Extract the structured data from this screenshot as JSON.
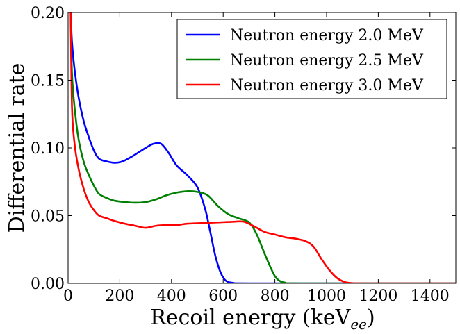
{
  "chart_data": {
    "type": "line",
    "xlabel": "Recoil energy (keV",
    "xlabel_sub": "ee",
    "xlabel_close": ")",
    "ylabel": "Differential rate",
    "xlim": [
      0,
      1500
    ],
    "ylim": [
      0,
      0.2
    ],
    "x_ticks": [
      0,
      200,
      400,
      600,
      800,
      1000,
      1200,
      1400
    ],
    "x_tick_labels": [
      "0",
      "200",
      "400",
      "600",
      "800",
      "1000",
      "1200",
      "1400"
    ],
    "y_ticks": [
      0,
      0.05,
      0.1,
      0.15,
      0.2
    ],
    "y_tick_labels": [
      "0.00",
      "0.05",
      "0.10",
      "0.15",
      "0.20"
    ],
    "grid": false,
    "legend_position": "top-right",
    "series": [
      {
        "name": "Neutron energy 2.0 MeV",
        "color": "#0000ff",
        "points": [
          [
            10,
            0.2
          ],
          [
            15,
            0.178
          ],
          [
            25,
            0.158
          ],
          [
            40,
            0.138
          ],
          [
            60,
            0.12
          ],
          [
            80,
            0.108
          ],
          [
            100,
            0.098
          ],
          [
            120,
            0.092
          ],
          [
            150,
            0.09
          ],
          [
            180,
            0.089
          ],
          [
            210,
            0.09
          ],
          [
            250,
            0.094
          ],
          [
            300,
            0.1
          ],
          [
            330,
            0.103
          ],
          [
            360,
            0.103
          ],
          [
            390,
            0.096
          ],
          [
            420,
            0.087
          ],
          [
            460,
            0.08
          ],
          [
            500,
            0.071
          ],
          [
            530,
            0.055
          ],
          [
            550,
            0.038
          ],
          [
            570,
            0.02
          ],
          [
            590,
            0.008
          ],
          [
            610,
            0.002
          ],
          [
            640,
            0.0003
          ],
          [
            700,
            0
          ],
          [
            1500,
            0
          ]
        ]
      },
      {
        "name": "Neutron energy 2.5 MeV",
        "color": "#008000",
        "points": [
          [
            10,
            0.2
          ],
          [
            15,
            0.155
          ],
          [
            25,
            0.13
          ],
          [
            40,
            0.107
          ],
          [
            60,
            0.09
          ],
          [
            80,
            0.08
          ],
          [
            100,
            0.072
          ],
          [
            120,
            0.066
          ],
          [
            150,
            0.063
          ],
          [
            180,
            0.061
          ],
          [
            220,
            0.06
          ],
          [
            260,
            0.0595
          ],
          [
            300,
            0.06
          ],
          [
            340,
            0.062
          ],
          [
            380,
            0.065
          ],
          [
            420,
            0.067
          ],
          [
            460,
            0.068
          ],
          [
            500,
            0.0675
          ],
          [
            540,
            0.065
          ],
          [
            580,
            0.057
          ],
          [
            620,
            0.051
          ],
          [
            660,
            0.048
          ],
          [
            700,
            0.045
          ],
          [
            730,
            0.036
          ],
          [
            760,
            0.022
          ],
          [
            790,
            0.009
          ],
          [
            810,
            0.003
          ],
          [
            840,
            0.0005
          ],
          [
            900,
            0
          ],
          [
            1500,
            0
          ]
        ]
      },
      {
        "name": "Neutron energy 3.0 MeV",
        "color": "#ff0000",
        "points": [
          [
            10,
            0.2
          ],
          [
            15,
            0.13
          ],
          [
            25,
            0.103
          ],
          [
            40,
            0.085
          ],
          [
            60,
            0.07
          ],
          [
            80,
            0.06
          ],
          [
            100,
            0.054
          ],
          [
            120,
            0.05
          ],
          [
            150,
            0.048
          ],
          [
            180,
            0.046
          ],
          [
            220,
            0.044
          ],
          [
            260,
            0.0425
          ],
          [
            300,
            0.041
          ],
          [
            340,
            0.0425
          ],
          [
            380,
            0.043
          ],
          [
            420,
            0.043
          ],
          [
            460,
            0.044
          ],
          [
            520,
            0.0445
          ],
          [
            580,
            0.045
          ],
          [
            640,
            0.0455
          ],
          [
            680,
            0.0455
          ],
          [
            720,
            0.042
          ],
          [
            760,
            0.038
          ],
          [
            800,
            0.036
          ],
          [
            840,
            0.034
          ],
          [
            880,
            0.033
          ],
          [
            920,
            0.031
          ],
          [
            950,
            0.027
          ],
          [
            980,
            0.018
          ],
          [
            1010,
            0.01
          ],
          [
            1040,
            0.004
          ],
          [
            1070,
            0.001
          ],
          [
            1100,
            0.0002
          ],
          [
            1150,
            0
          ],
          [
            1500,
            0
          ]
        ]
      }
    ]
  }
}
